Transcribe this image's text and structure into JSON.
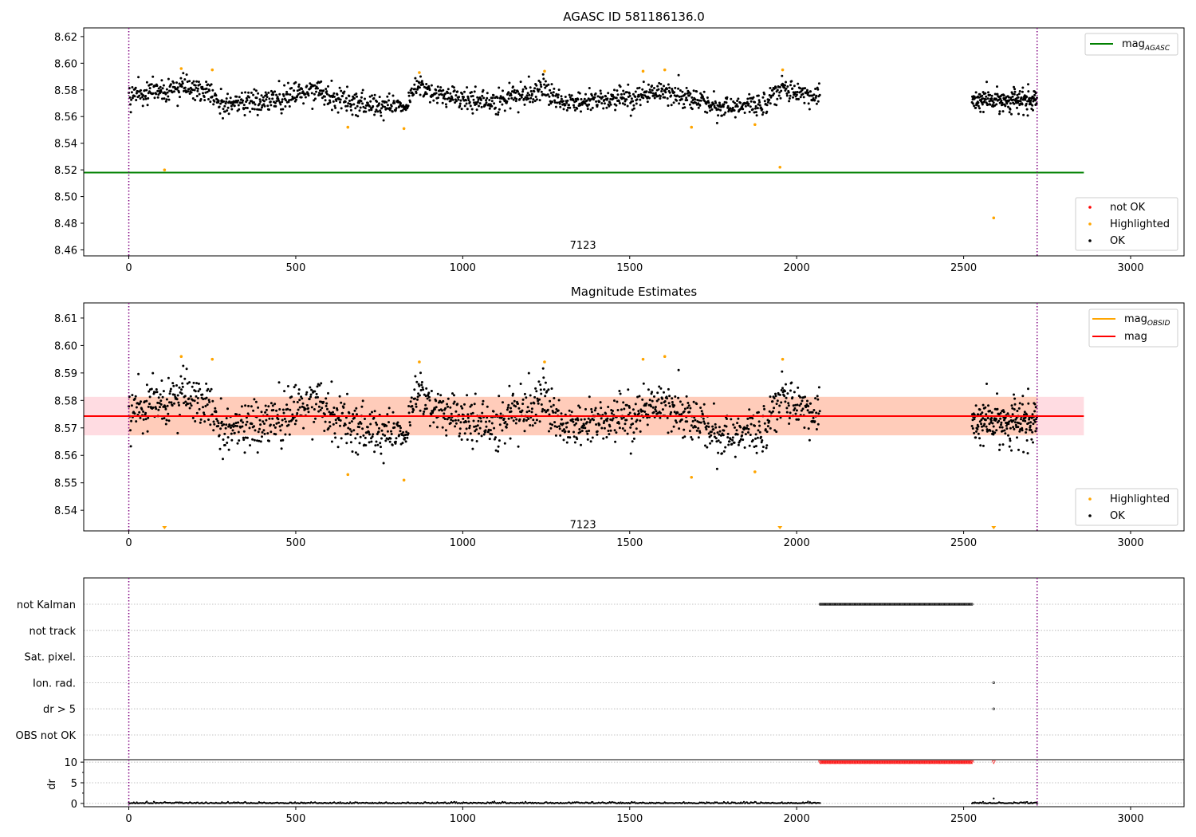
{
  "chart_data": [
    {
      "type": "scatter",
      "title": "AGASC ID 581186136.0",
      "xlim": [
        -135,
        3160
      ],
      "ylim": [
        8.4555,
        8.6265
      ],
      "xticks": [
        0,
        500,
        1000,
        1500,
        2000,
        2500,
        3000
      ],
      "xtick_labels": [
        "0",
        "500",
        "1000",
        "1500",
        "2000",
        "2500",
        "3000"
      ],
      "yticks": [
        8.46,
        8.48,
        8.5,
        8.52,
        8.54,
        8.56,
        8.58,
        8.6,
        8.62
      ],
      "ytick_labels": [
        "8.46",
        "8.48",
        "8.50",
        "8.52",
        "8.54",
        "8.56",
        "8.58",
        "8.60",
        "8.62"
      ],
      "obsid_lines": [
        0,
        2720
      ],
      "annotation": {
        "text": "7123",
        "x": 1360,
        "y": 8.461
      },
      "lines": [
        {
          "name": "mag_AGASC",
          "label_main": "mag",
          "label_sub": "AGASC",
          "y": 8.518,
          "x": [
            -135,
            2860
          ],
          "color": "#008000"
        }
      ],
      "bands": [],
      "legend_lines": [
        {
          "label_main": "mag",
          "label_sub": "AGASC",
          "color": "#008000"
        }
      ],
      "legend_points": [
        {
          "label": "not OK",
          "color": "#ff0000"
        },
        {
          "label": "Highlighted",
          "color": "#ffa500"
        },
        {
          "label": "OK",
          "color": "#000000"
        }
      ],
      "segments": [
        {
          "x_range": [
            0,
            2070
          ],
          "baseline": [
            [
              0,
              8.575
            ],
            [
              150,
              8.583
            ],
            [
              240,
              8.58
            ],
            [
              270,
              8.569
            ],
            [
              420,
              8.572
            ],
            [
              560,
              8.579
            ],
            [
              700,
              8.57
            ],
            [
              830,
              8.568
            ],
            [
              860,
              8.585
            ],
            [
              900,
              8.578
            ],
            [
              1000,
              8.574
            ],
            [
              1100,
              8.57
            ],
            [
              1240,
              8.582
            ],
            [
              1300,
              8.57
            ],
            [
              1500,
              8.574
            ],
            [
              1600,
              8.58
            ],
            [
              1700,
              8.572
            ],
            [
              1800,
              8.566
            ],
            [
              1900,
              8.57
            ],
            [
              1960,
              8.582
            ],
            [
              2070,
              8.573
            ]
          ],
          "count": 1450,
          "spread": 0.0042
        },
        {
          "x_range": [
            2525,
            2720
          ],
          "baseline": [
            [
              2525,
              8.572
            ],
            [
              2720,
              8.572
            ]
          ],
          "count": 200,
          "spread": 0.0042
        }
      ],
      "highlighted": [
        [
          107,
          8.52
        ],
        [
          157,
          8.596
        ],
        [
          250,
          8.595
        ],
        [
          656,
          8.552
        ],
        [
          824,
          8.551
        ],
        [
          870,
          8.593
        ],
        [
          1245,
          8.594
        ],
        [
          1540,
          8.594
        ],
        [
          1605,
          8.595
        ],
        [
          1685,
          8.552
        ],
        [
          1875,
          8.554
        ],
        [
          1950,
          8.522
        ],
        [
          1958,
          8.595
        ],
        [
          2590,
          8.484
        ]
      ]
    },
    {
      "type": "scatter",
      "title": "Magnitude Estimates",
      "xlim": [
        -135,
        3160
      ],
      "ylim": [
        8.5325,
        8.6155
      ],
      "xticks": [
        0,
        500,
        1000,
        1500,
        2000,
        2500,
        3000
      ],
      "xtick_labels": [
        "0",
        "500",
        "1000",
        "1500",
        "2000",
        "2500",
        "3000"
      ],
      "yticks": [
        8.54,
        8.55,
        8.56,
        8.57,
        8.58,
        8.59,
        8.6,
        8.61
      ],
      "ytick_labels": [
        "8.54",
        "8.55",
        "8.56",
        "8.57",
        "8.58",
        "8.59",
        "8.60",
        "8.61"
      ],
      "obsid_lines": [
        0,
        2720
      ],
      "annotation": {
        "text": "7123",
        "x": 1360,
        "y": 8.5335
      },
      "lines": [
        {
          "name": "mag",
          "y": 8.5743,
          "x": [
            -135,
            2860
          ],
          "color": "#ff0000"
        }
      ],
      "bands": [
        {
          "x": [
            -135,
            2860
          ],
          "y": [
            8.5673,
            8.5813
          ],
          "color": "#ffc0cb"
        },
        {
          "x": [
            0,
            2720
          ],
          "y": [
            8.5673,
            8.5813
          ],
          "color": "#ffbf99"
        }
      ],
      "legend_lines": [
        {
          "label_main": "mag",
          "label_sub": "OBSID",
          "color": "#ffa500"
        },
        {
          "label_main": "mag",
          "label_sub": "",
          "color": "#ff0000"
        }
      ],
      "legend_points": [
        {
          "label": "Highlighted",
          "color": "#ffa500"
        },
        {
          "label": "OK",
          "color": "#000000"
        }
      ],
      "segments": [
        {
          "x_range": [
            0,
            2070
          ],
          "baseline": [
            [
              0,
              8.575
            ],
            [
              150,
              8.583
            ],
            [
              240,
              8.58
            ],
            [
              270,
              8.569
            ],
            [
              420,
              8.572
            ],
            [
              560,
              8.579
            ],
            [
              700,
              8.57
            ],
            [
              830,
              8.568
            ],
            [
              860,
              8.585
            ],
            [
              900,
              8.578
            ],
            [
              1000,
              8.574
            ],
            [
              1100,
              8.57
            ],
            [
              1240,
              8.582
            ],
            [
              1300,
              8.57
            ],
            [
              1500,
              8.574
            ],
            [
              1600,
              8.58
            ],
            [
              1700,
              8.572
            ],
            [
              1800,
              8.566
            ],
            [
              1900,
              8.57
            ],
            [
              1960,
              8.582
            ],
            [
              2070,
              8.573
            ]
          ],
          "count": 1450,
          "spread": 0.0042
        },
        {
          "x_range": [
            2525,
            2720
          ],
          "baseline": [
            [
              2525,
              8.572
            ],
            [
              2720,
              8.572
            ]
          ],
          "count": 200,
          "spread": 0.0042
        }
      ],
      "highlighted": [
        [
          157,
          8.596
        ],
        [
          250,
          8.595
        ],
        [
          656,
          8.553
        ],
        [
          824,
          8.551
        ],
        [
          870,
          8.594
        ],
        [
          1245,
          8.594
        ],
        [
          1540,
          8.595
        ],
        [
          1605,
          8.596
        ],
        [
          1685,
          8.552
        ],
        [
          1875,
          8.554
        ],
        [
          1958,
          8.595
        ]
      ],
      "offscale_markers": [
        107,
        1950,
        2590
      ]
    },
    {
      "type": "scatter",
      "title": "",
      "xlim": [
        -135,
        3160
      ],
      "xticks": [
        0,
        500,
        1000,
        1500,
        2000,
        2500,
        3000
      ],
      "xtick_labels": [
        "0",
        "500",
        "1000",
        "1500",
        "2000",
        "2500",
        "3000"
      ],
      "obsid_lines": [
        0,
        2720
      ],
      "flag_rows": [
        "not Kalman",
        "not track",
        "Sat. pixel.",
        "Ion. rad.",
        "dr > 5",
        "OBS not OK"
      ],
      "flags": {
        "not Kalman": {
          "x_range": [
            2070,
            2525
          ],
          "count": 160
        },
        "Ion. rad.": {
          "points": [
            2590
          ]
        },
        "dr > 5": {
          "points": [
            2590
          ]
        }
      },
      "dr": {
        "ylabel": "dr",
        "yticks": [
          0,
          5,
          10
        ],
        "ytick_labels": [
          "0",
          "5",
          "10"
        ],
        "ylim": [
          -0.8,
          10.6
        ],
        "clipped_value": 10,
        "clipped_x_range": [
          2070,
          2525
        ],
        "clipped_points": [
          2590
        ],
        "low_segments": [
          [
            0,
            2070
          ],
          [
            2525,
            2720
          ]
        ],
        "outlier": [
          2590,
          1.2
        ]
      }
    }
  ]
}
